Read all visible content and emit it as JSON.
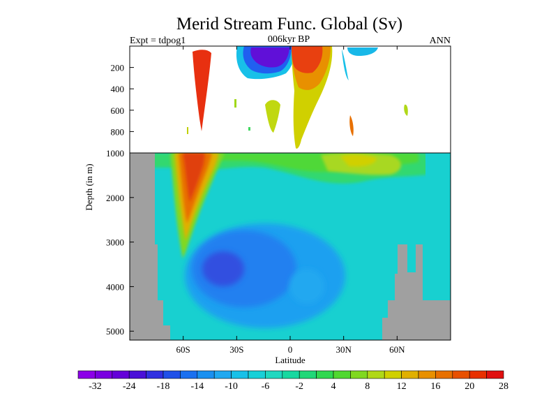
{
  "chart_data": {
    "type": "heatmap",
    "title": "Merid Stream Func. Global (Sv)",
    "left_label": "Expt = tdpog1",
    "center_label": "006kyr BP",
    "right_label": "ANN",
    "xlabel": "Latitude",
    "ylabel": "Depth (in m)",
    "x_ticks": [
      "60S",
      "30S",
      "0",
      "30N",
      "60N"
    ],
    "x_tick_values": [
      -60,
      -30,
      0,
      30,
      60
    ],
    "xlim": [
      -90,
      90
    ],
    "upper_panel": {
      "ylim": [
        0,
        1000
      ],
      "y_ticks": [
        "200",
        "400",
        "600",
        "800",
        "1000"
      ],
      "y_tick_values": [
        200,
        400,
        600,
        800,
        1000
      ]
    },
    "lower_panel": {
      "ylim": [
        1000,
        5200
      ],
      "y_ticks": [
        "2000",
        "3000",
        "4000",
        "5000"
      ],
      "y_tick_values": [
        2000,
        3000,
        4000,
        5000
      ]
    },
    "colorbar": {
      "labels": [
        "-32",
        "-24",
        "-18",
        "-14",
        "-10",
        "-6",
        "-2",
        "4",
        "8",
        "12",
        "16",
        "20",
        "28"
      ],
      "colors": [
        "#8c00e8",
        "#7a00e0",
        "#6400d8",
        "#4a10d8",
        "#3030e0",
        "#2050e8",
        "#1a70f0",
        "#1a90f0",
        "#20a8f0",
        "#18c0e8",
        "#18d0d8",
        "#20d8c0",
        "#18d8a0",
        "#20d878",
        "#30d850",
        "#50d830",
        "#80d820",
        "#b0d818",
        "#d0d000",
        "#e0b000",
        "#e89000",
        "#e87000",
        "#e85000",
        "#e83000",
        "#e01010"
      ]
    },
    "land_color": "#a0a0a0",
    "background_color": "#18d0d0"
  }
}
